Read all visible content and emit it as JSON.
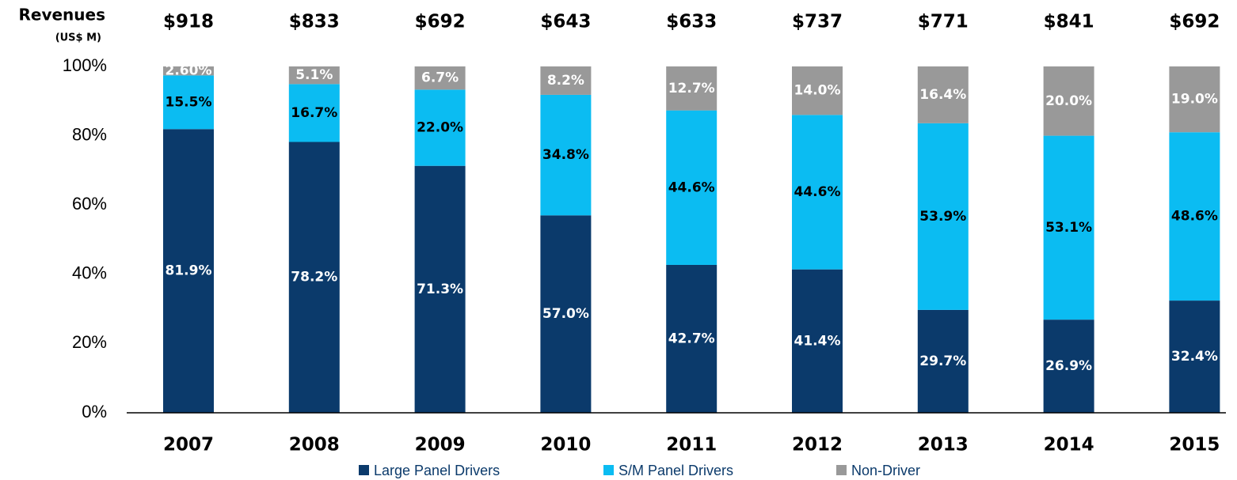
{
  "chart_data": {
    "type": "stacked_bar",
    "revenue_title": "Revenues",
    "revenue_unit": "(US$ M)",
    "revenues": [
      918,
      833,
      692,
      643,
      633,
      737,
      771,
      841,
      692
    ],
    "revenue_labels": [
      "$918",
      "$833",
      "$692",
      "$643",
      "$633",
      "$737",
      "$771",
      "$841",
      "$692"
    ],
    "categories": [
      "2007",
      "2008",
      "2009",
      "2010",
      "2011",
      "2012",
      "2013",
      "2014",
      "2015"
    ],
    "series": [
      {
        "name": "Large Panel Drivers",
        "color": "#0b3a6b",
        "label_color": "#ffffff",
        "values": [
          81.9,
          78.2,
          71.3,
          57.0,
          42.7,
          41.4,
          29.7,
          26.9,
          32.4
        ],
        "value_labels": [
          "81.9%",
          "78.2%",
          "71.3%",
          "57.0%",
          "42.7%",
          "41.4%",
          "29.7%",
          "26.9%",
          "32.4%"
        ]
      },
      {
        "name": "S/M Panel Drivers",
        "color": "#0bbcf2",
        "label_color": "#000000",
        "values": [
          15.5,
          16.7,
          22.0,
          34.8,
          44.6,
          44.6,
          53.9,
          53.1,
          48.6
        ],
        "value_labels": [
          "15.5%",
          "16.7%",
          "22.0%",
          "34.8%",
          "44.6%",
          "44.6%",
          "53.9%",
          "53.1%",
          "48.6%"
        ]
      },
      {
        "name": "Non-Driver",
        "color": "#999999",
        "label_color": "#ffffff",
        "values": [
          2.6,
          5.1,
          6.7,
          8.2,
          12.7,
          14.0,
          16.4,
          20.0,
          19.0
        ],
        "value_labels": [
          "2.60%",
          "5.1%",
          "6.7%",
          "8.2%",
          "12.7%",
          "14.0%",
          "16.4%",
          "20.0%",
          "19.0%"
        ]
      }
    ],
    "ylim": [
      0,
      100
    ],
    "yticks": [
      {
        "value": 0,
        "label": "0%"
      },
      {
        "value": 20,
        "label": "20%"
      },
      {
        "value": 40,
        "label": "40%"
      },
      {
        "value": 60,
        "label": "60%"
      },
      {
        "value": 80,
        "label": "80%"
      },
      {
        "value": 100,
        "label": "100%"
      }
    ],
    "grid": false
  }
}
